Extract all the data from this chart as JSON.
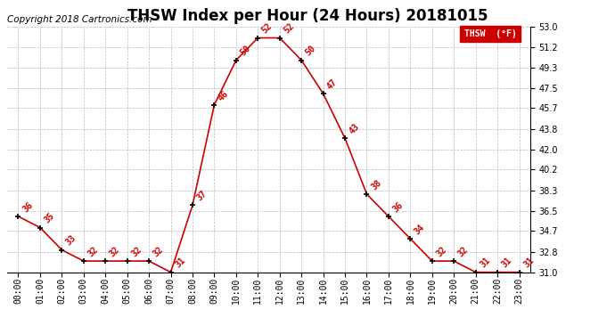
{
  "title": "THSW Index per Hour (24 Hours) 20181015",
  "copyright": "Copyright 2018 Cartronics.com",
  "legend_label": "THSW  (°F)",
  "hours": [
    0,
    1,
    2,
    3,
    4,
    5,
    6,
    7,
    8,
    9,
    10,
    11,
    12,
    13,
    14,
    15,
    16,
    17,
    18,
    19,
    20,
    21,
    22,
    23
  ],
  "values": [
    36,
    35,
    33,
    32,
    32,
    32,
    32,
    31,
    37,
    46,
    50,
    52,
    52,
    50,
    47,
    43,
    38,
    36,
    34,
    32,
    32,
    31,
    31,
    31
  ],
  "xlabels": [
    "00:00",
    "01:00",
    "02:00",
    "03:00",
    "04:00",
    "05:00",
    "06:00",
    "07:00",
    "08:00",
    "09:00",
    "10:00",
    "11:00",
    "12:00",
    "13:00",
    "14:00",
    "15:00",
    "16:00",
    "17:00",
    "18:00",
    "19:00",
    "20:00",
    "21:00",
    "22:00",
    "23:00"
  ],
  "ylim_min": 31.0,
  "ylim_max": 53.0,
  "yticks": [
    31.0,
    32.8,
    34.7,
    36.5,
    38.3,
    40.2,
    42.0,
    43.8,
    45.7,
    47.5,
    49.3,
    51.2,
    53.0
  ],
  "line_color": "#cc0000",
  "marker_color": "#000000",
  "data_label_color": "#cc0000",
  "background_color": "#ffffff",
  "grid_color": "#bbbbbb",
  "title_fontsize": 12,
  "copyright_fontsize": 7.5,
  "label_fontsize": 7,
  "tick_fontsize": 7,
  "legend_bg": "#cc0000",
  "legend_text_color": "#ffffff"
}
